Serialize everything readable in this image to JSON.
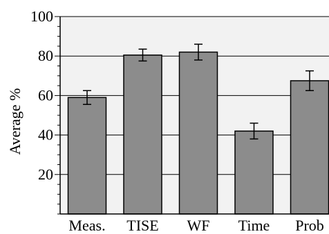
{
  "chart_data": {
    "type": "bar",
    "title": "",
    "xlabel": "",
    "ylabel": "Average %",
    "categories": [
      "Meas.",
      "TISE",
      "WF",
      "Time",
      "Prob"
    ],
    "values": [
      59,
      80.5,
      82,
      42,
      67.5
    ],
    "errors": [
      3.5,
      3,
      4,
      4,
      5
    ],
    "ylim": [
      0,
      100
    ],
    "yticks": [
      20,
      40,
      60,
      80,
      100
    ],
    "grid": true,
    "legend": "none"
  },
  "colors": {
    "plot_background": "#f2f2f2",
    "bar_fill": "#8c8c8c",
    "bar_stroke": "#000000",
    "gridline": "#000000",
    "text": "#000000"
  }
}
